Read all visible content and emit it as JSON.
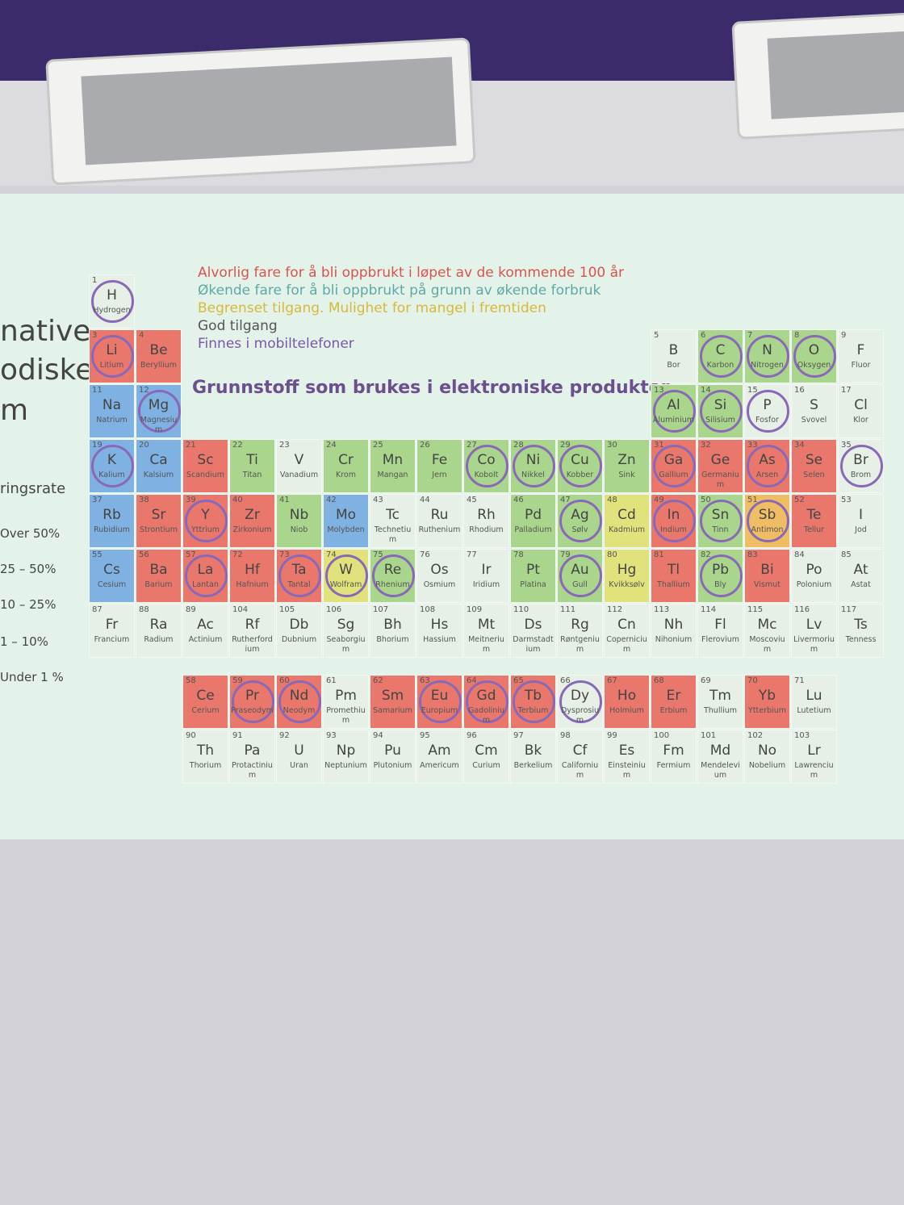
{
  "slide": {
    "side_text": [
      "native",
      "odiske",
      "m",
      "ringsrate",
      "Over 50%",
      "25 – 50%",
      "10 – 25%",
      "1 – 10%",
      "Under 1 %"
    ],
    "legend": [
      {
        "text": "Alvorlig fare for å bli oppbrukt i løpet av de kommende 100 år",
        "color": "#d9534f"
      },
      {
        "text": "Økende fare for å bli oppbrukt på grunn av økende forbruk",
        "color": "#5fa8a6"
      },
      {
        "text": "Begrenset tilgang. Mulighet for mangel i fremtiden",
        "color": "#d8b83c"
      },
      {
        "text": "God tilgang",
        "color": "#555555"
      },
      {
        "text": "Finnes i mobiltelefoner",
        "color": "#7a56a8"
      }
    ],
    "heading": "Grunnstoff som brukes i elektroniske produkter",
    "elements": [
      {
        "number": 1,
        "symbol": "H",
        "name": "Hydrogen",
        "color": "#e6f0e6",
        "circled": true
      },
      {
        "number": 3,
        "symbol": "Li",
        "name": "Litium",
        "color": "#e9776c",
        "circled": true
      },
      {
        "number": 4,
        "symbol": "Be",
        "name": "Beryllium",
        "color": "#e9776c"
      },
      {
        "number": 5,
        "symbol": "B",
        "name": "Bor",
        "color": "#e6f0e6"
      },
      {
        "number": 6,
        "symbol": "C",
        "name": "Karbon",
        "color": "#a9d68c",
        "circled": true
      },
      {
        "number": 7,
        "symbol": "N",
        "name": "Nitrogen",
        "color": "#a9d68c",
        "circled": true
      },
      {
        "number": 8,
        "symbol": "O",
        "name": "Oksygen",
        "color": "#a9d68c",
        "circled": true
      },
      {
        "number": 9,
        "symbol": "F",
        "name": "Fluor",
        "color": "#e6f0e6"
      },
      {
        "number": 11,
        "symbol": "Na",
        "name": "Natrium",
        "color": "#7fb1e2"
      },
      {
        "number": 12,
        "symbol": "Mg",
        "name": "Magnesium",
        "color": "#7fb1e2",
        "circled": true
      },
      {
        "number": 13,
        "symbol": "Al",
        "name": "Aluminium",
        "color": "#a9d68c",
        "circled": true
      },
      {
        "number": 14,
        "symbol": "Si",
        "name": "Silisium",
        "color": "#a9d68c",
        "circled": true
      },
      {
        "number": 15,
        "symbol": "P",
        "name": "Fosfor",
        "color": "#e6f0e6",
        "circled": true
      },
      {
        "number": 16,
        "symbol": "S",
        "name": "Svovel",
        "color": "#e6f0e6"
      },
      {
        "number": 17,
        "symbol": "Cl",
        "name": "Klor",
        "color": "#e6f0e6"
      },
      {
        "number": 19,
        "symbol": "K",
        "name": "Kalium",
        "color": "#7fb1e2",
        "circled": true
      },
      {
        "number": 20,
        "symbol": "Ca",
        "name": "Kalsium",
        "color": "#7fb1e2"
      },
      {
        "number": 21,
        "symbol": "Sc",
        "name": "Scandium",
        "color": "#e9776c"
      },
      {
        "number": 22,
        "symbol": "Ti",
        "name": "Titan",
        "color": "#a9d68c"
      },
      {
        "number": 23,
        "symbol": "V",
        "name": "Vanadium",
        "color": "#e6f0e6"
      },
      {
        "number": 24,
        "symbol": "Cr",
        "name": "Krom",
        "color": "#a9d68c"
      },
      {
        "number": 25,
        "symbol": "Mn",
        "name": "Mangan",
        "color": "#a9d68c"
      },
      {
        "number": 26,
        "symbol": "Fe",
        "name": "Jern",
        "color": "#a9d68c"
      },
      {
        "number": 27,
        "symbol": "Co",
        "name": "Kobolt",
        "color": "#a9d68c",
        "circled": true
      },
      {
        "number": 28,
        "symbol": "Ni",
        "name": "Nikkel",
        "color": "#a9d68c",
        "circled": true
      },
      {
        "number": 29,
        "symbol": "Cu",
        "name": "Kobber",
        "color": "#a9d68c",
        "circled": true
      },
      {
        "number": 30,
        "symbol": "Zn",
        "name": "Sink",
        "color": "#a9d68c"
      },
      {
        "number": 31,
        "symbol": "Ga",
        "name": "Gallium",
        "color": "#e9776c",
        "circled": true
      },
      {
        "number": 32,
        "symbol": "Ge",
        "name": "Germanium",
        "color": "#e9776c"
      },
      {
        "number": 33,
        "symbol": "As",
        "name": "Arsen",
        "color": "#e9776c",
        "circled": true
      },
      {
        "number": 34,
        "symbol": "Se",
        "name": "Selen",
        "color": "#e9776c"
      },
      {
        "number": 35,
        "symbol": "Br",
        "name": "Brom",
        "color": "#e6f0e6",
        "circled": true
      },
      {
        "number": 37,
        "symbol": "Rb",
        "name": "Rubidium",
        "color": "#7fb1e2"
      },
      {
        "number": 38,
        "symbol": "Sr",
        "name": "Strontium",
        "color": "#e9776c"
      },
      {
        "number": 39,
        "symbol": "Y",
        "name": "Yttrium",
        "color": "#e9776c",
        "circled": true
      },
      {
        "number": 40,
        "symbol": "Zr",
        "name": "Zirkonium",
        "color": "#e9776c"
      },
      {
        "number": 41,
        "symbol": "Nb",
        "name": "Niob",
        "color": "#a9d68c"
      },
      {
        "number": 42,
        "symbol": "Mo",
        "name": "Molybden",
        "color": "#7fb1e2"
      },
      {
        "number": 43,
        "symbol": "Tc",
        "name": "Technetium",
        "color": "#e6f0e6"
      },
      {
        "number": 44,
        "symbol": "Ru",
        "name": "Ruthenium",
        "color": "#e6f0e6"
      },
      {
        "number": 45,
        "symbol": "Rh",
        "name": "Rhodium",
        "color": "#e6f0e6"
      },
      {
        "number": 46,
        "symbol": "Pd",
        "name": "Palladium",
        "color": "#a9d68c"
      },
      {
        "number": 47,
        "symbol": "Ag",
        "name": "Sølv",
        "color": "#a9d68c",
        "circled": true
      },
      {
        "number": 48,
        "symbol": "Cd",
        "name": "Kadmium",
        "color": "#e2e27c"
      },
      {
        "number": 49,
        "symbol": "In",
        "name": "Indium",
        "color": "#e9776c",
        "circled": true
      },
      {
        "number": 50,
        "symbol": "Sn",
        "name": "Tinn",
        "color": "#a9d68c",
        "circled": true
      },
      {
        "number": 51,
        "symbol": "Sb",
        "name": "Antimon",
        "color": "#efbd63",
        "circled": true
      },
      {
        "number": 52,
        "symbol": "Te",
        "name": "Tellur",
        "color": "#e9776c"
      },
      {
        "number": 53,
        "symbol": "I",
        "name": "Jod",
        "color": "#e6f0e6"
      },
      {
        "number": 55,
        "symbol": "Cs",
        "name": "Cesium",
        "color": "#7fb1e2"
      },
      {
        "number": 56,
        "symbol": "Ba",
        "name": "Barium",
        "color": "#e9776c"
      },
      {
        "number": 57,
        "symbol": "La",
        "name": "Lantan",
        "color": "#e9776c",
        "circled": true
      },
      {
        "number": 72,
        "symbol": "Hf",
        "name": "Hafnium",
        "color": "#e9776c"
      },
      {
        "number": 73,
        "symbol": "Ta",
        "name": "Tantal",
        "color": "#e9776c",
        "circled": true
      },
      {
        "number": 74,
        "symbol": "W",
        "name": "Wolfram",
        "color": "#e2e27c",
        "circled": true
      },
      {
        "number": 75,
        "symbol": "Re",
        "name": "Rhenium",
        "color": "#a9d68c",
        "circled": true
      },
      {
        "number": 76,
        "symbol": "Os",
        "name": "Osmium",
        "color": "#e6f0e6"
      },
      {
        "number": 77,
        "symbol": "Ir",
        "name": "Iridium",
        "color": "#e6f0e6"
      },
      {
        "number": 78,
        "symbol": "Pt",
        "name": "Platina",
        "color": "#a9d68c"
      },
      {
        "number": 79,
        "symbol": "Au",
        "name": "Gull",
        "color": "#a9d68c",
        "circled": true
      },
      {
        "number": 80,
        "symbol": "Hg",
        "name": "Kvikksølv",
        "color": "#e2e27c"
      },
      {
        "number": 81,
        "symbol": "Tl",
        "name": "Thallium",
        "color": "#e9776c"
      },
      {
        "number": 82,
        "symbol": "Pb",
        "name": "Bly",
        "color": "#a9d68c",
        "circled": true
      },
      {
        "number": 83,
        "symbol": "Bi",
        "name": "Vismut",
        "color": "#e9776c"
      },
      {
        "number": 84,
        "symbol": "Po",
        "name": "Polonium",
        "color": "#e6f0e6"
      },
      {
        "number": 85,
        "symbol": "At",
        "name": "Astat",
        "color": "#e6f0e6"
      },
      {
        "number": 87,
        "symbol": "Fr",
        "name": "Francium",
        "color": "#e6f0e6"
      },
      {
        "number": 88,
        "symbol": "Ra",
        "name": "Radium",
        "color": "#e6f0e6"
      },
      {
        "number": 89,
        "symbol": "Ac",
        "name": "Actinium",
        "color": "#e6f0e6"
      },
      {
        "number": 104,
        "symbol": "Rf",
        "name": "Rutherfordium",
        "color": "#e6f0e6"
      },
      {
        "number": 105,
        "symbol": "Db",
        "name": "Dubnium",
        "color": "#e6f0e6"
      },
      {
        "number": 106,
        "symbol": "Sg",
        "name": "Seaborgium",
        "color": "#e6f0e6"
      },
      {
        "number": 107,
        "symbol": "Bh",
        "name": "Bhorium",
        "color": "#e6f0e6"
      },
      {
        "number": 108,
        "symbol": "Hs",
        "name": "Hassium",
        "color": "#e6f0e6"
      },
      {
        "number": 109,
        "symbol": "Mt",
        "name": "Meitnerium",
        "color": "#e6f0e6"
      },
      {
        "number": 110,
        "symbol": "Ds",
        "name": "Darmstadtium",
        "color": "#e6f0e6"
      },
      {
        "number": 111,
        "symbol": "Rg",
        "name": "Røntgenium",
        "color": "#e6f0e6"
      },
      {
        "number": 112,
        "symbol": "Cn",
        "name": "Copernicium",
        "color": "#e6f0e6"
      },
      {
        "number": 113,
        "symbol": "Nh",
        "name": "Nihonium",
        "color": "#e6f0e6"
      },
      {
        "number": 114,
        "symbol": "Fl",
        "name": "Flerovium",
        "color": "#e6f0e6"
      },
      {
        "number": 115,
        "symbol": "Mc",
        "name": "Moscovium",
        "color": "#e6f0e6"
      },
      {
        "number": 116,
        "symbol": "Lv",
        "name": "Livermorium",
        "color": "#e6f0e6"
      },
      {
        "number": 117,
        "symbol": "Ts",
        "name": "Tenness",
        "color": "#e6f0e6"
      },
      {
        "number": 58,
        "symbol": "Ce",
        "name": "Cerium",
        "color": "#e9776c"
      },
      {
        "number": 59,
        "symbol": "Pr",
        "name": "Praseodym",
        "color": "#e9776c",
        "circled": true
      },
      {
        "number": 60,
        "symbol": "Nd",
        "name": "Neodym",
        "color": "#e9776c",
        "circled": true
      },
      {
        "number": 61,
        "symbol": "Pm",
        "name": "Promethium",
        "color": "#e6f0e6"
      },
      {
        "number": 62,
        "symbol": "Sm",
        "name": "Samarium",
        "color": "#e9776c"
      },
      {
        "number": 63,
        "symbol": "Eu",
        "name": "Europium",
        "color": "#e9776c",
        "circled": true
      },
      {
        "number": 64,
        "symbol": "Gd",
        "name": "Gadolinium",
        "color": "#e9776c",
        "circled": true
      },
      {
        "number": 65,
        "symbol": "Tb",
        "name": "Terbium",
        "color": "#e9776c",
        "circled": true
      },
      {
        "number": 66,
        "symbol": "Dy",
        "name": "Dysprosium",
        "color": "#e6f0e6",
        "circled": true
      },
      {
        "number": 67,
        "symbol": "Ho",
        "name": "Holmium",
        "color": "#e9776c"
      },
      {
        "number": 68,
        "symbol": "Er",
        "name": "Erbium",
        "color": "#e9776c"
      },
      {
        "number": 69,
        "symbol": "Tm",
        "name": "Thullium",
        "color": "#e6f0e6"
      },
      {
        "number": 70,
        "symbol": "Yb",
        "name": "Ytterbium",
        "color": "#e9776c"
      },
      {
        "number": 71,
        "symbol": "Lu",
        "name": "Lutetium",
        "color": "#e6f0e6"
      },
      {
        "number": 90,
        "symbol": "Th",
        "name": "Thorium",
        "color": "#e6f0e6"
      },
      {
        "number": 91,
        "symbol": "Pa",
        "name": "Protactinium",
        "color": "#e6f0e6"
      },
      {
        "number": 92,
        "symbol": "U",
        "name": "Uran",
        "color": "#e6f0e6"
      },
      {
        "number": 93,
        "symbol": "Np",
        "name": "Neptunium",
        "color": "#e6f0e6"
      },
      {
        "number": 94,
        "symbol": "Pu",
        "name": "Plutonium",
        "color": "#e6f0e6"
      },
      {
        "number": 95,
        "symbol": "Am",
        "name": "Americum",
        "color": "#e6f0e6"
      },
      {
        "number": 96,
        "symbol": "Cm",
        "name": "Curium",
        "color": "#e6f0e6"
      },
      {
        "number": 97,
        "symbol": "Bk",
        "name": "Berkelium",
        "color": "#e6f0e6"
      },
      {
        "number": 98,
        "symbol": "Cf",
        "name": "Californium",
        "color": "#e6f0e6"
      },
      {
        "number": 99,
        "symbol": "Es",
        "name": "Einsteinium",
        "color": "#e6f0e6"
      },
      {
        "number": 100,
        "symbol": "Fm",
        "name": "Fermium",
        "color": "#e6f0e6"
      },
      {
        "number": 101,
        "symbol": "Md",
        "name": "Mendelevium",
        "color": "#e6f0e6"
      },
      {
        "number": 102,
        "symbol": "No",
        "name": "Nobelium",
        "color": "#e6f0e6"
      },
      {
        "number": 103,
        "symbol": "Lr",
        "name": "Lawrencium",
        "color": "#e6f0e6"
      }
    ]
  }
}
